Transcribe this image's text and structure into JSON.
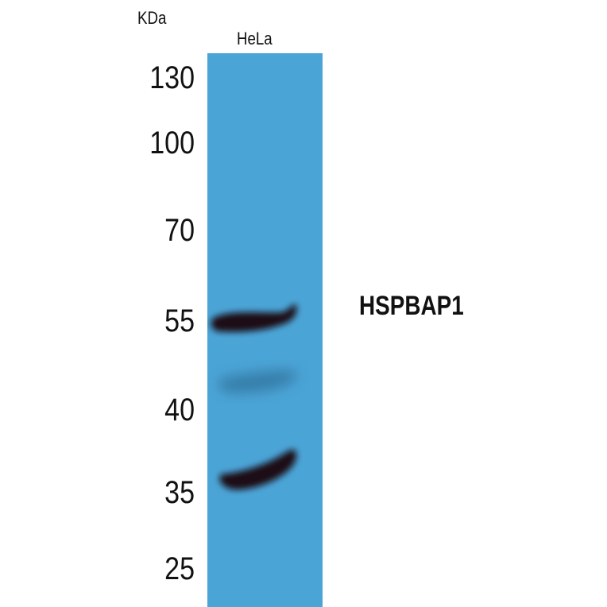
{
  "axis_unit": "KDa",
  "lanes": [
    {
      "label": "HeLa"
    }
  ],
  "markers": [
    "130",
    "100",
    "70",
    "55",
    "40",
    "35",
    "25"
  ],
  "target_label": "HSPBAP1",
  "colors": {
    "membrane": "#4ba4d6",
    "band": "#1a0f14"
  }
}
